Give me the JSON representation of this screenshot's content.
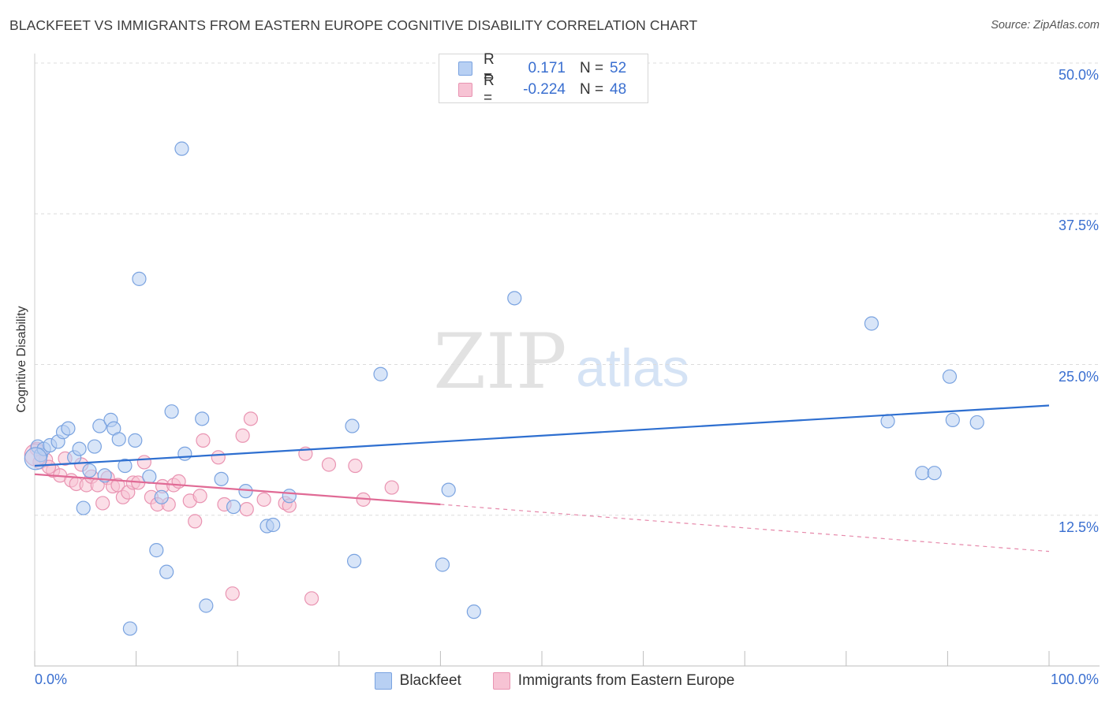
{
  "title": "BLACKFEET VS IMMIGRANTS FROM EASTERN EUROPE COGNITIVE DISABILITY CORRELATION CHART",
  "source": "Source: ZipAtlas.com",
  "watermark": {
    "zip": "ZIP",
    "atlas": "atlas"
  },
  "legend": {
    "rows": [
      {
        "r_label": "R =",
        "r_value": "0.171",
        "n_label": "N =",
        "n_value": "52"
      },
      {
        "r_label": "R =",
        "r_value": "-0.224",
        "n_label": "N =",
        "n_value": "48"
      }
    ]
  },
  "colors": {
    "blue_fill": "#b8d0f3",
    "blue_stroke": "#7aa3e0",
    "blue_line": "#2e6fd0",
    "pink_fill": "#f7c3d4",
    "pink_stroke": "#e994b2",
    "pink_line": "#e06a95",
    "grid": "#dcdcdc",
    "tick_text": "#3a6fd0"
  },
  "chart_data": {
    "type": "scatter",
    "title": "BLACKFEET VS IMMIGRANTS FROM EASTERN EUROPE COGNITIVE DISABILITY CORRELATION CHART",
    "xlabel": "",
    "ylabel": "Cognitive Disability",
    "xlim": [
      0,
      100
    ],
    "ylim": [
      0,
      50
    ],
    "x_tick_labels": [
      "0.0%",
      "100.0%"
    ],
    "y_ticks": [
      12.5,
      25.0,
      37.5,
      50.0
    ],
    "y_tick_labels": [
      "12.5%",
      "25.0%",
      "37.5%",
      "50.0%"
    ],
    "grid": true,
    "legend_position": "top-center",
    "series": [
      {
        "name": "Blackfeet",
        "r": 0.171,
        "n": 52,
        "trend": {
          "x": [
            0,
            100
          ],
          "y": [
            16.6,
            21.6
          ]
        },
        "points": [
          [
            0.3,
            18.2
          ],
          [
            0.6,
            17.5
          ],
          [
            0.9,
            18.0
          ],
          [
            1.5,
            18.3
          ],
          [
            2.3,
            18.6
          ],
          [
            2.8,
            19.4
          ],
          [
            3.3,
            19.7
          ],
          [
            3.9,
            17.3
          ],
          [
            4.4,
            18.0
          ],
          [
            4.8,
            13.1
          ],
          [
            5.4,
            16.2
          ],
          [
            5.9,
            18.2
          ],
          [
            6.4,
            19.9
          ],
          [
            6.9,
            15.8
          ],
          [
            7.5,
            20.4
          ],
          [
            7.8,
            19.7
          ],
          [
            8.3,
            18.8
          ],
          [
            8.9,
            16.6
          ],
          [
            9.4,
            3.1
          ],
          [
            9.9,
            18.7
          ],
          [
            10.3,
            32.1
          ],
          [
            11.3,
            15.7
          ],
          [
            12.0,
            9.6
          ],
          [
            12.5,
            14.0
          ],
          [
            13.0,
            7.8
          ],
          [
            13.5,
            21.1
          ],
          [
            14.5,
            42.9
          ],
          [
            14.8,
            17.6
          ],
          [
            16.5,
            20.5
          ],
          [
            16.9,
            5.0
          ],
          [
            18.4,
            15.5
          ],
          [
            19.6,
            13.2
          ],
          [
            20.8,
            14.5
          ],
          [
            22.9,
            11.6
          ],
          [
            23.5,
            11.7
          ],
          [
            25.1,
            14.1
          ],
          [
            31.3,
            19.9
          ],
          [
            31.5,
            8.7
          ],
          [
            34.1,
            24.2
          ],
          [
            40.2,
            8.4
          ],
          [
            40.8,
            14.6
          ],
          [
            43.3,
            4.5
          ],
          [
            47.3,
            30.5
          ],
          [
            49.5,
            50.0
          ],
          [
            82.5,
            28.4
          ],
          [
            84.1,
            20.3
          ],
          [
            87.5,
            16.0
          ],
          [
            88.7,
            16.0
          ],
          [
            90.2,
            24.0
          ],
          [
            90.5,
            20.4
          ],
          [
            92.9,
            20.2
          ],
          [
            0.1,
            17.2
          ]
        ]
      },
      {
        "name": "Immigrants from Eastern Europe",
        "r": -0.224,
        "n": 48,
        "trend": {
          "x": [
            0,
            40
          ],
          "y": [
            15.9,
            13.4
          ]
        },
        "trend_dashed": {
          "x": [
            40,
            100
          ],
          "y": [
            13.4,
            9.5
          ]
        },
        "points": [
          [
            0.2,
            18.0
          ],
          [
            0.5,
            16.9
          ],
          [
            1.1,
            17.1
          ],
          [
            1.8,
            16.2
          ],
          [
            2.5,
            15.8
          ],
          [
            3.0,
            17.2
          ],
          [
            3.6,
            15.4
          ],
          [
            4.1,
            15.1
          ],
          [
            4.6,
            16.7
          ],
          [
            5.1,
            15.0
          ],
          [
            5.6,
            15.7
          ],
          [
            6.2,
            15.0
          ],
          [
            6.7,
            13.5
          ],
          [
            7.2,
            15.6
          ],
          [
            7.7,
            14.9
          ],
          [
            8.2,
            15.0
          ],
          [
            8.7,
            14.0
          ],
          [
            9.2,
            14.4
          ],
          [
            9.7,
            15.2
          ],
          [
            10.2,
            15.2
          ],
          [
            10.8,
            16.9
          ],
          [
            11.5,
            14.0
          ],
          [
            12.1,
            13.4
          ],
          [
            12.6,
            14.9
          ],
          [
            13.2,
            13.4
          ],
          [
            13.7,
            15.0
          ],
          [
            14.2,
            15.3
          ],
          [
            15.3,
            13.7
          ],
          [
            15.8,
            12.0
          ],
          [
            16.3,
            14.1
          ],
          [
            16.6,
            18.7
          ],
          [
            18.1,
            17.3
          ],
          [
            18.7,
            13.4
          ],
          [
            19.5,
            6.0
          ],
          [
            20.5,
            19.1
          ],
          [
            20.9,
            13.0
          ],
          [
            21.3,
            20.5
          ],
          [
            22.6,
            13.8
          ],
          [
            24.7,
            13.5
          ],
          [
            25.1,
            13.3
          ],
          [
            26.7,
            17.6
          ],
          [
            27.3,
            5.6
          ],
          [
            29.0,
            16.7
          ],
          [
            31.6,
            16.6
          ],
          [
            32.4,
            13.8
          ],
          [
            35.2,
            14.8
          ],
          [
            1.4,
            16.5
          ],
          [
            0.1,
            17.5
          ]
        ]
      }
    ]
  },
  "bottom_legend": {
    "items": [
      {
        "label": "Blackfeet"
      },
      {
        "label": "Immigrants from Eastern Europe"
      }
    ]
  }
}
